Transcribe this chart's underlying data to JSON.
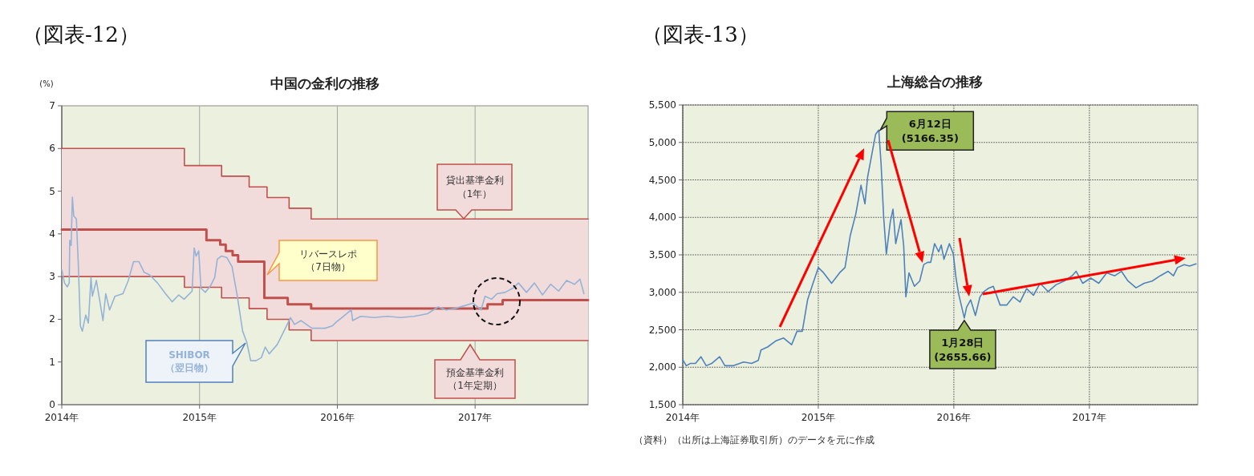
{
  "chart_data": [
    {
      "type": "line",
      "title": "中国の金利の推移",
      "ylabel": "(%)",
      "annotations": [
        "（図表-12）"
      ],
      "xlim": [
        2014,
        2017.82
      ],
      "xticks": [
        {
          "value": 2014,
          "label": "2014年"
        },
        {
          "value": 2015,
          "label": "2015年"
        },
        {
          "value": 2016,
          "label": "2016年"
        },
        {
          "value": 2017,
          "label": "2017年"
        }
      ],
      "ylim": [
        0,
        7
      ],
      "yticks": [
        0,
        1,
        2,
        3,
        4,
        5,
        6,
        7
      ],
      "grid": "x",
      "series": [
        {
          "name": "貸出基準金利（1年）",
          "type": "step",
          "color": "#c0504d",
          "x": [
            2014,
            2014.89,
            2015.16,
            2015.36,
            2015.49,
            2015.65,
            2015.81,
            2017.82
          ],
          "values": [
            6,
            5.6,
            5.35,
            5.1,
            4.85,
            4.6,
            4.35,
            4.35
          ],
          "lower": [
            3,
            2.75,
            2.5,
            2.25,
            2,
            1.75,
            1.5,
            1.5
          ],
          "upper": [
            6,
            5.6,
            5.35,
            5.1,
            4.85,
            4.6,
            4.35,
            4.35
          ]
        },
        {
          "name": "預金基準金利（1年定期）",
          "type": "step",
          "color": "#c0504d",
          "x": [
            2014,
            2014.89,
            2015.16,
            2015.36,
            2015.49,
            2015.65,
            2015.81,
            2017.82
          ],
          "values": [
            3,
            2.75,
            2.5,
            2.25,
            2,
            1.75,
            1.5,
            1.5
          ]
        },
        {
          "name": "リバースレポ（7日物）",
          "type": "step",
          "color": "#c0504d",
          "x": [
            2014,
            2015.05,
            2015.15,
            2015.19,
            2015.24,
            2015.28,
            2015.47,
            2015.64,
            2015.81,
            2017.09,
            2017.2,
            2017.82
          ],
          "values": [
            4.1,
            3.85,
            3.75,
            3.6,
            3.5,
            3.35,
            2.5,
            2.35,
            2.25,
            2.35,
            2.45,
            2.45
          ]
        },
        {
          "name": "SHIBOR（翌日物）",
          "color": "#95b3d7",
          "x": [
            2014.0,
            2014.02,
            2014.04,
            2014.054,
            2014.058,
            2014.068,
            2014.077,
            2014.087,
            2014.106,
            2014.12,
            2014.135,
            2014.149,
            2014.174,
            2014.193,
            2014.212,
            2014.222,
            2014.251,
            2014.28,
            2014.299,
            2014.319,
            2014.347,
            2014.386,
            2014.444,
            2014.483,
            2014.521,
            2014.56,
            2014.598,
            2014.637,
            2014.695,
            2014.753,
            2014.801,
            2014.849,
            2014.888,
            2014.946,
            2014.961,
            2014.975,
            2014.994,
            2015.01,
            2015.042,
            2015.081,
            2015.11,
            2015.129,
            2015.158,
            2015.197,
            2015.236,
            2015.274,
            2015.313,
            2015.342,
            2015.371,
            2015.409,
            2015.448,
            2015.477,
            2015.506,
            2015.564,
            2015.612,
            2015.641,
            2015.66,
            2015.689,
            2015.737,
            2015.815,
            2015.911,
            2015.965,
            2015.994,
            2016.033,
            2016.101,
            2016.111,
            2016.169,
            2016.266,
            2016.363,
            2016.46,
            2016.557,
            2016.654,
            2016.732,
            2016.79,
            2016.849,
            2016.926,
            2016.984,
            2017.043,
            2017.072,
            2017.12,
            2017.159,
            2017.217,
            2017.276,
            2017.315,
            2017.373,
            2017.431,
            2017.489,
            2017.548,
            2017.606,
            2017.664,
            2017.722,
            2017.761,
            2017.79
          ],
          "values": [
            3.16,
            2.85,
            2.76,
            2.85,
            3.85,
            3.73,
            4.86,
            4.42,
            4.35,
            3.29,
            1.85,
            1.72,
            2.1,
            1.91,
            2.98,
            2.54,
            2.91,
            2.35,
            1.97,
            2.6,
            2.22,
            2.54,
            2.6,
            2.91,
            3.35,
            3.35,
            3.1,
            3.04,
            2.85,
            2.6,
            2.41,
            2.57,
            2.47,
            2.66,
            3.67,
            3.48,
            3.6,
            2.73,
            2.63,
            2.79,
            2.98,
            3.41,
            3.48,
            3.45,
            3.23,
            2.54,
            1.72,
            1.47,
            1.03,
            1.03,
            1.1,
            1.35,
            1.19,
            1.41,
            1.72,
            1.91,
            2.04,
            1.88,
            1.97,
            1.79,
            1.79,
            1.85,
            1.94,
            2.04,
            2.22,
            1.97,
            2.07,
            2.04,
            2.07,
            2.04,
            2.07,
            2.13,
            2.29,
            2.22,
            2.25,
            2.32,
            2.38,
            2.22,
            2.54,
            2.47,
            2.6,
            2.63,
            2.73,
            2.85,
            2.63,
            2.85,
            2.57,
            2.82,
            2.66,
            2.91,
            2.82,
            2.94,
            2.6
          ]
        }
      ]
    },
    {
      "type": "line",
      "title": "上海総合の推移",
      "annotations": [
        "（図表-13）",
        "（資料）（出所は上海証券取引所）のデータを元に作成",
        {
          "text": "6月12日(5166.35)",
          "x": 2015.446,
          "y": 5166.35
        },
        {
          "text": "1月28日(2655.66)",
          "x": 2016.077,
          "y": 2655.66
        }
      ],
      "xlim": [
        2014,
        2017.8
      ],
      "xticks": [
        {
          "value": 2014,
          "label": "2014年"
        },
        {
          "value": 2015,
          "label": "2015年"
        },
        {
          "value": 2016,
          "label": "2016年"
        },
        {
          "value": 2017,
          "label": "2017年"
        }
      ],
      "ylim": [
        1500,
        5500
      ],
      "yticks": [
        {
          "value": 1500,
          "label": "1,500"
        },
        {
          "value": 2000,
          "label": "2,000"
        },
        {
          "value": 2500,
          "label": "2,500"
        },
        {
          "value": 3000,
          "label": "3,000"
        },
        {
          "value": 3500,
          "label": "3,500"
        },
        {
          "value": 4000,
          "label": "4,000"
        },
        {
          "value": 4500,
          "label": "4,500"
        },
        {
          "value": 5000,
          "label": "5,000"
        },
        {
          "value": 5500,
          "label": "5,500"
        }
      ],
      "grid": true,
      "series": [
        {
          "color": "#4f81bd",
          "x": [
            2014.0,
            2014.026,
            2014.055,
            2014.094,
            2014.134,
            2014.173,
            2014.213,
            2014.272,
            2014.311,
            2014.37,
            2014.449,
            2014.508,
            2014.557,
            2014.577,
            2014.626,
            2014.685,
            2014.744,
            2014.803,
            2014.843,
            2014.882,
            2014.921,
            2014.961,
            2015.0,
            2015.039,
            2015.098,
            2015.157,
            2015.197,
            2015.236,
            2015.276,
            2015.315,
            2015.344,
            2015.364,
            2015.404,
            2015.423,
            2015.446,
            2015.463,
            2015.482,
            2015.502,
            2015.531,
            2015.551,
            2015.571,
            2015.61,
            2015.63,
            2015.646,
            2015.669,
            2015.709,
            2015.748,
            2015.778,
            2015.807,
            2015.829,
            2015.858,
            2015.888,
            2015.907,
            2015.927,
            2015.967,
            2015.996,
            2016.016,
            2016.035,
            2016.077,
            2016.094,
            2016.124,
            2016.159,
            2016.193,
            2016.222,
            2016.252,
            2016.291,
            2016.341,
            2016.39,
            2016.439,
            2016.488,
            2016.537,
            2016.587,
            2016.636,
            2016.695,
            2016.754,
            2016.813,
            2016.872,
            2016.902,
            2016.951,
            2017.01,
            2017.069,
            2017.128,
            2017.187,
            2017.236,
            2017.285,
            2017.344,
            2017.404,
            2017.463,
            2017.522,
            2017.581,
            2017.62,
            2017.65,
            2017.699,
            2017.738,
            2017.787
          ],
          "values": [
            2100,
            2020,
            2050,
            2050,
            2140,
            2020,
            2050,
            2140,
            2020,
            2020,
            2070,
            2050,
            2090,
            2230,
            2270,
            2350,
            2390,
            2300,
            2480,
            2480,
            2900,
            3120,
            3330,
            3260,
            3120,
            3260,
            3330,
            3760,
            4040,
            4430,
            4180,
            4540,
            4930,
            5110,
            5166,
            4720,
            4010,
            3510,
            3940,
            4110,
            3650,
            3970,
            3620,
            2940,
            3260,
            3080,
            3150,
            3370,
            3400,
            3400,
            3650,
            3540,
            3630,
            3440,
            3650,
            3510,
            3190,
            2980,
            2656,
            2800,
            2900,
            2690,
            2940,
            3010,
            3050,
            3080,
            2830,
            2830,
            2940,
            2870,
            3050,
            2960,
            3120,
            3010,
            3100,
            3150,
            3220,
            3280,
            3120,
            3190,
            3120,
            3260,
            3220,
            3280,
            3150,
            3060,
            3120,
            3150,
            3220,
            3280,
            3220,
            3330,
            3370,
            3350,
            3380
          ]
        }
      ]
    }
  ]
}
